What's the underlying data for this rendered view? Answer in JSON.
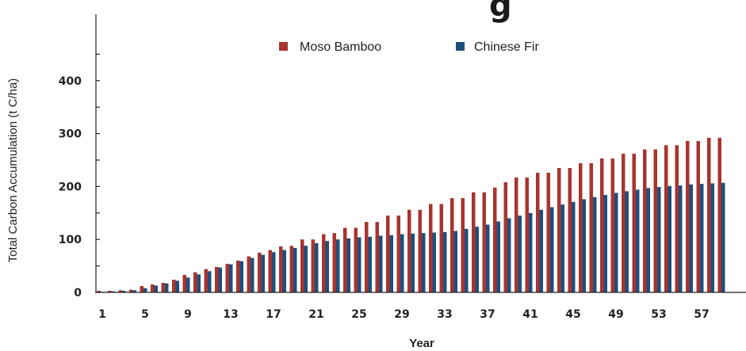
{
  "chart_data": {
    "type": "bar",
    "title_fragment": "g",
    "xlabel": "Year",
    "ylabel": "Total Carbon Accumulation (t C/ha)",
    "ylim": [
      0,
      450
    ],
    "yticks": [
      0,
      100,
      200,
      300,
      400
    ],
    "xticks": [
      1,
      5,
      9,
      13,
      17,
      21,
      25,
      29,
      33,
      37,
      41,
      45,
      49,
      53,
      57
    ],
    "grid": false,
    "legend_position": "top-center",
    "series": [
      {
        "name": "Moso Bamboo",
        "color": "#a8342f",
        "values": [
          3,
          3,
          4,
          5,
          12,
          15,
          18,
          24,
          33,
          38,
          44,
          48,
          54,
          60,
          68,
          75,
          80,
          87,
          88,
          100,
          100,
          110,
          112,
          122,
          122,
          133,
          133,
          145,
          145,
          156,
          156,
          167,
          167,
          178,
          178,
          189,
          189,
          198,
          208,
          217,
          217,
          226,
          226,
          235,
          235,
          244,
          244,
          253,
          253,
          262,
          262,
          270,
          270,
          278,
          278,
          286,
          286,
          292,
          292
        ]
      },
      {
        "name": "Chinese Fir",
        "color": "#1e4f7c",
        "values": [
          1,
          2,
          3,
          4,
          8,
          13,
          17,
          22,
          28,
          34,
          40,
          47,
          53,
          59,
          65,
          71,
          76,
          80,
          84,
          88,
          93,
          97,
          100,
          102,
          104,
          105,
          107,
          108,
          110,
          111,
          112,
          113,
          114,
          116,
          120,
          124,
          128,
          134,
          140,
          145,
          150,
          156,
          161,
          166,
          171,
          176,
          180,
          184,
          188,
          191,
          194,
          197,
          199,
          201,
          202,
          204,
          205,
          206,
          207
        ]
      }
    ]
  }
}
